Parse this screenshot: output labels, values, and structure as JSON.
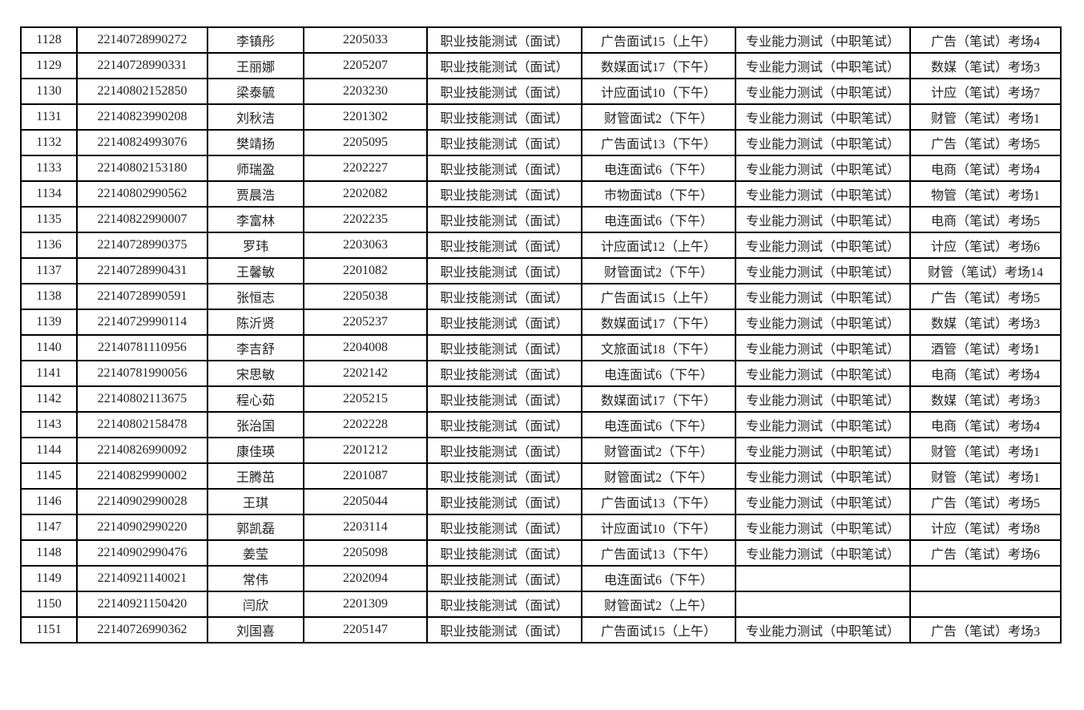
{
  "table": {
    "rows": [
      [
        "1128",
        "22140728990272",
        "李镇彤",
        "2205033",
        "职业技能测试（面试）",
        "广告面试15（上午）",
        "专业能力测试（中职笔试）",
        "广告（笔试）考场4"
      ],
      [
        "1129",
        "22140728990331",
        "王丽娜",
        "2205207",
        "职业技能测试（面试）",
        "数媒面试17（下午）",
        "专业能力测试（中职笔试）",
        "数媒（笔试）考场3"
      ],
      [
        "1130",
        "22140802152850",
        "梁泰毓",
        "2203230",
        "职业技能测试（面试）",
        "计应面试10（下午）",
        "专业能力测试（中职笔试）",
        "计应（笔试）考场7"
      ],
      [
        "1131",
        "22140823990208",
        "刘秋洁",
        "2201302",
        "职业技能测试（面试）",
        "财管面试2（下午）",
        "专业能力测试（中职笔试）",
        "财管（笔试）考场1"
      ],
      [
        "1132",
        "22140824993076",
        "樊靖扬",
        "2205095",
        "职业技能测试（面试）",
        "广告面试13（下午）",
        "专业能力测试（中职笔试）",
        "广告（笔试）考场5"
      ],
      [
        "1133",
        "22140802153180",
        "师瑞盈",
        "2202227",
        "职业技能测试（面试）",
        "电连面试6（下午）",
        "专业能力测试（中职笔试）",
        "电商（笔试）考场4"
      ],
      [
        "1134",
        "22140802990562",
        "贾晨浩",
        "2202082",
        "职业技能测试（面试）",
        "市物面试8（下午）",
        "专业能力测试（中职笔试）",
        "物管（笔试）考场1"
      ],
      [
        "1135",
        "22140822990007",
        "李富林",
        "2202235",
        "职业技能测试（面试）",
        "电连面试6（下午）",
        "专业能力测试（中职笔试）",
        "电商（笔试）考场5"
      ],
      [
        "1136",
        "22140728990375",
        "罗玮",
        "2203063",
        "职业技能测试（面试）",
        "计应面试12（上午）",
        "专业能力测试（中职笔试）",
        "计应（笔试）考场6"
      ],
      [
        "1137",
        "22140728990431",
        "王馨敏",
        "2201082",
        "职业技能测试（面试）",
        "财管面试2（下午）",
        "专业能力测试（中职笔试）",
        "财管（笔试）考场14"
      ],
      [
        "1138",
        "22140728990591",
        "张恒志",
        "2205038",
        "职业技能测试（面试）",
        "广告面试15（上午）",
        "专业能力测试（中职笔试）",
        "广告（笔试）考场5"
      ],
      [
        "1139",
        "22140729990114",
        "陈沂贤",
        "2205237",
        "职业技能测试（面试）",
        "数媒面试17（下午）",
        "专业能力测试（中职笔试）",
        "数媒（笔试）考场3"
      ],
      [
        "1140",
        "22140781110956",
        "李吉舒",
        "2204008",
        "职业技能测试（面试）",
        "文旅面试18（下午）",
        "专业能力测试（中职笔试）",
        "酒管（笔试）考场1"
      ],
      [
        "1141",
        "22140781990056",
        "宋思敏",
        "2202142",
        "职业技能测试（面试）",
        "电连面试6（下午）",
        "专业能力测试（中职笔试）",
        "电商（笔试）考场4"
      ],
      [
        "1142",
        "22140802113675",
        "程心茹",
        "2205215",
        "职业技能测试（面试）",
        "数媒面试17（下午）",
        "专业能力测试（中职笔试）",
        "数媒（笔试）考场3"
      ],
      [
        "1143",
        "22140802158478",
        "张治国",
        "2202228",
        "职业技能测试（面试）",
        "电连面试6（下午）",
        "专业能力测试（中职笔试）",
        "电商（笔试）考场4"
      ],
      [
        "1144",
        "22140826990092",
        "康佳瑛",
        "2201212",
        "职业技能测试（面试）",
        "财管面试2（下午）",
        "专业能力测试（中职笔试）",
        "财管（笔试）考场1"
      ],
      [
        "1145",
        "22140829990002",
        "王腾茁",
        "2201087",
        "职业技能测试（面试）",
        "财管面试2（下午）",
        "专业能力测试（中职笔试）",
        "财管（笔试）考场1"
      ],
      [
        "1146",
        "22140902990028",
        "王琪",
        "2205044",
        "职业技能测试（面试）",
        "广告面试13（下午）",
        "专业能力测试（中职笔试）",
        "广告（笔试）考场5"
      ],
      [
        "1147",
        "22140902990220",
        "郭凯磊",
        "2203114",
        "职业技能测试（面试）",
        "计应面试10（下午）",
        "专业能力测试（中职笔试）",
        "计应（笔试）考场8"
      ],
      [
        "1148",
        "22140902990476",
        "姜莹",
        "2205098",
        "职业技能测试（面试）",
        "广告面试13（下午）",
        "专业能力测试（中职笔试）",
        "广告（笔试）考场6"
      ],
      [
        "1149",
        "22140921140021",
        "常伟",
        "2202094",
        "职业技能测试（面试）",
        "电连面试6（下午）",
        "",
        ""
      ],
      [
        "1150",
        "22140921150420",
        "闫欣",
        "2201309",
        "职业技能测试（面试）",
        "财管面试2（上午）",
        "",
        ""
      ],
      [
        "1151",
        "22140726990362",
        "刘国喜",
        "2205147",
        "职业技能测试（面试）",
        "广告面试15（上午）",
        "专业能力测试（中职笔试）",
        "广告（笔试）考场3"
      ]
    ]
  }
}
